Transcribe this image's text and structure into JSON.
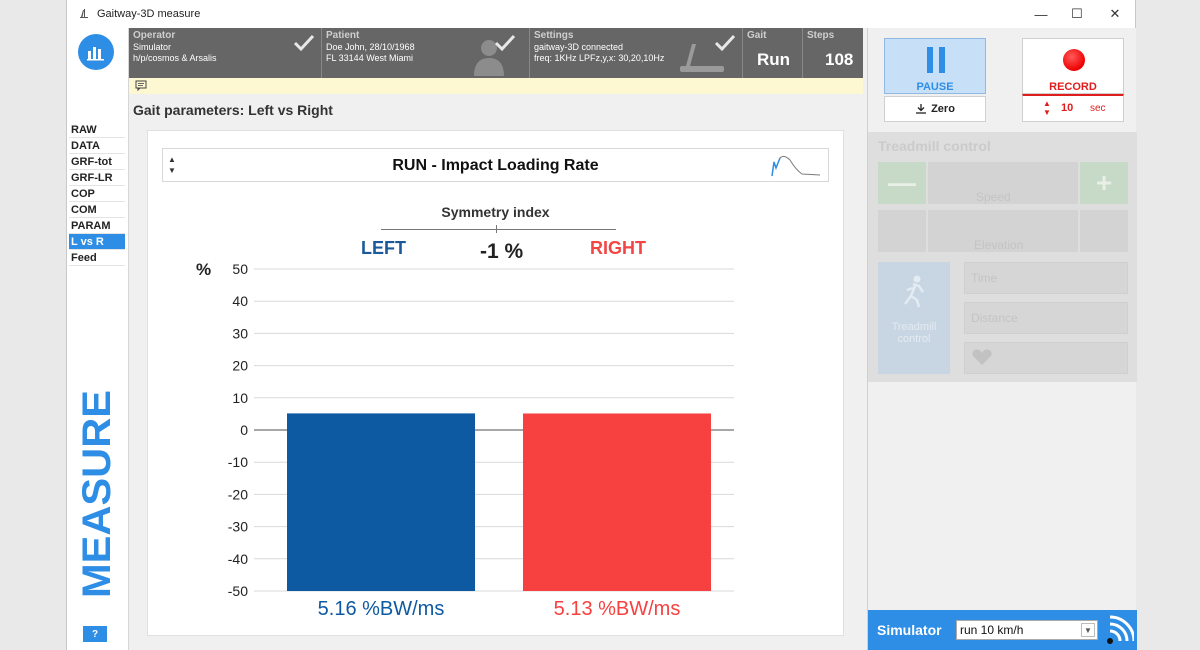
{
  "window": {
    "title": "Gaitway-3D measure"
  },
  "sidebar": {
    "items": [
      "RAW",
      "DATA",
      "GRF-tot",
      "GRF-LR",
      "COP",
      "COM",
      "PARAM",
      "L vs R",
      "Feed"
    ],
    "active_index": 7,
    "vertical_label": "MEASURE",
    "help_label": "?"
  },
  "header": {
    "operator": {
      "title": "Operator",
      "line1": "Simulator",
      "line2": "h/p/cosmos & Arsalis"
    },
    "patient": {
      "title": "Patient",
      "line1": "Doe John, 28/10/1968",
      "line2": "FL 33144 West Miami"
    },
    "settings": {
      "title": "Settings",
      "line1": "gaitway-3D connected",
      "line2": "freq: 1KHz   LPFz,y,x: 30,20,10Hz"
    },
    "gait": {
      "title": "Gait",
      "value": "Run"
    },
    "steps": {
      "title": "Steps",
      "value": "108"
    }
  },
  "section_title": "Gait parameters: Left vs Right",
  "parameter_selector": {
    "label": "RUN - Impact Loading Rate"
  },
  "symmetry": {
    "title": "Symmetry index",
    "left_label": "LEFT",
    "right_label": "RIGHT",
    "value": "-1 %"
  },
  "chart_data": {
    "type": "bar",
    "categories": [
      "LEFT",
      "RIGHT"
    ],
    "values": [
      5.16,
      5.13
    ],
    "value_labels": [
      "5.16 %BW/ms",
      "5.13 %BW/ms"
    ],
    "ylabel": "%",
    "ylim": [
      -50,
      50
    ],
    "yticks": [
      50,
      40,
      30,
      20,
      10,
      0,
      -10,
      -20,
      -30,
      -40,
      -50
    ],
    "bar_colors": [
      "#0d5aa3",
      "#f74040"
    ],
    "grid": true
  },
  "controls": {
    "pause_label": "PAUSE",
    "zero_label": "Zero",
    "record_label": "RECORD",
    "record_time": "10",
    "record_unit": "sec"
  },
  "treadmill": {
    "title": "Treadmill control",
    "speed_label": "Speed",
    "elevation_label": "Elevation",
    "control_label": "Treadmill control",
    "time_label": "Time",
    "distance_label": "Distance",
    "minus_label": "—",
    "plus_label": "+"
  },
  "simulator": {
    "label": "Simulator",
    "selected": "run 10 km/h"
  },
  "colors": {
    "accent": "#2e8ee6",
    "left": "#0d5aa3",
    "right": "#f74040"
  }
}
